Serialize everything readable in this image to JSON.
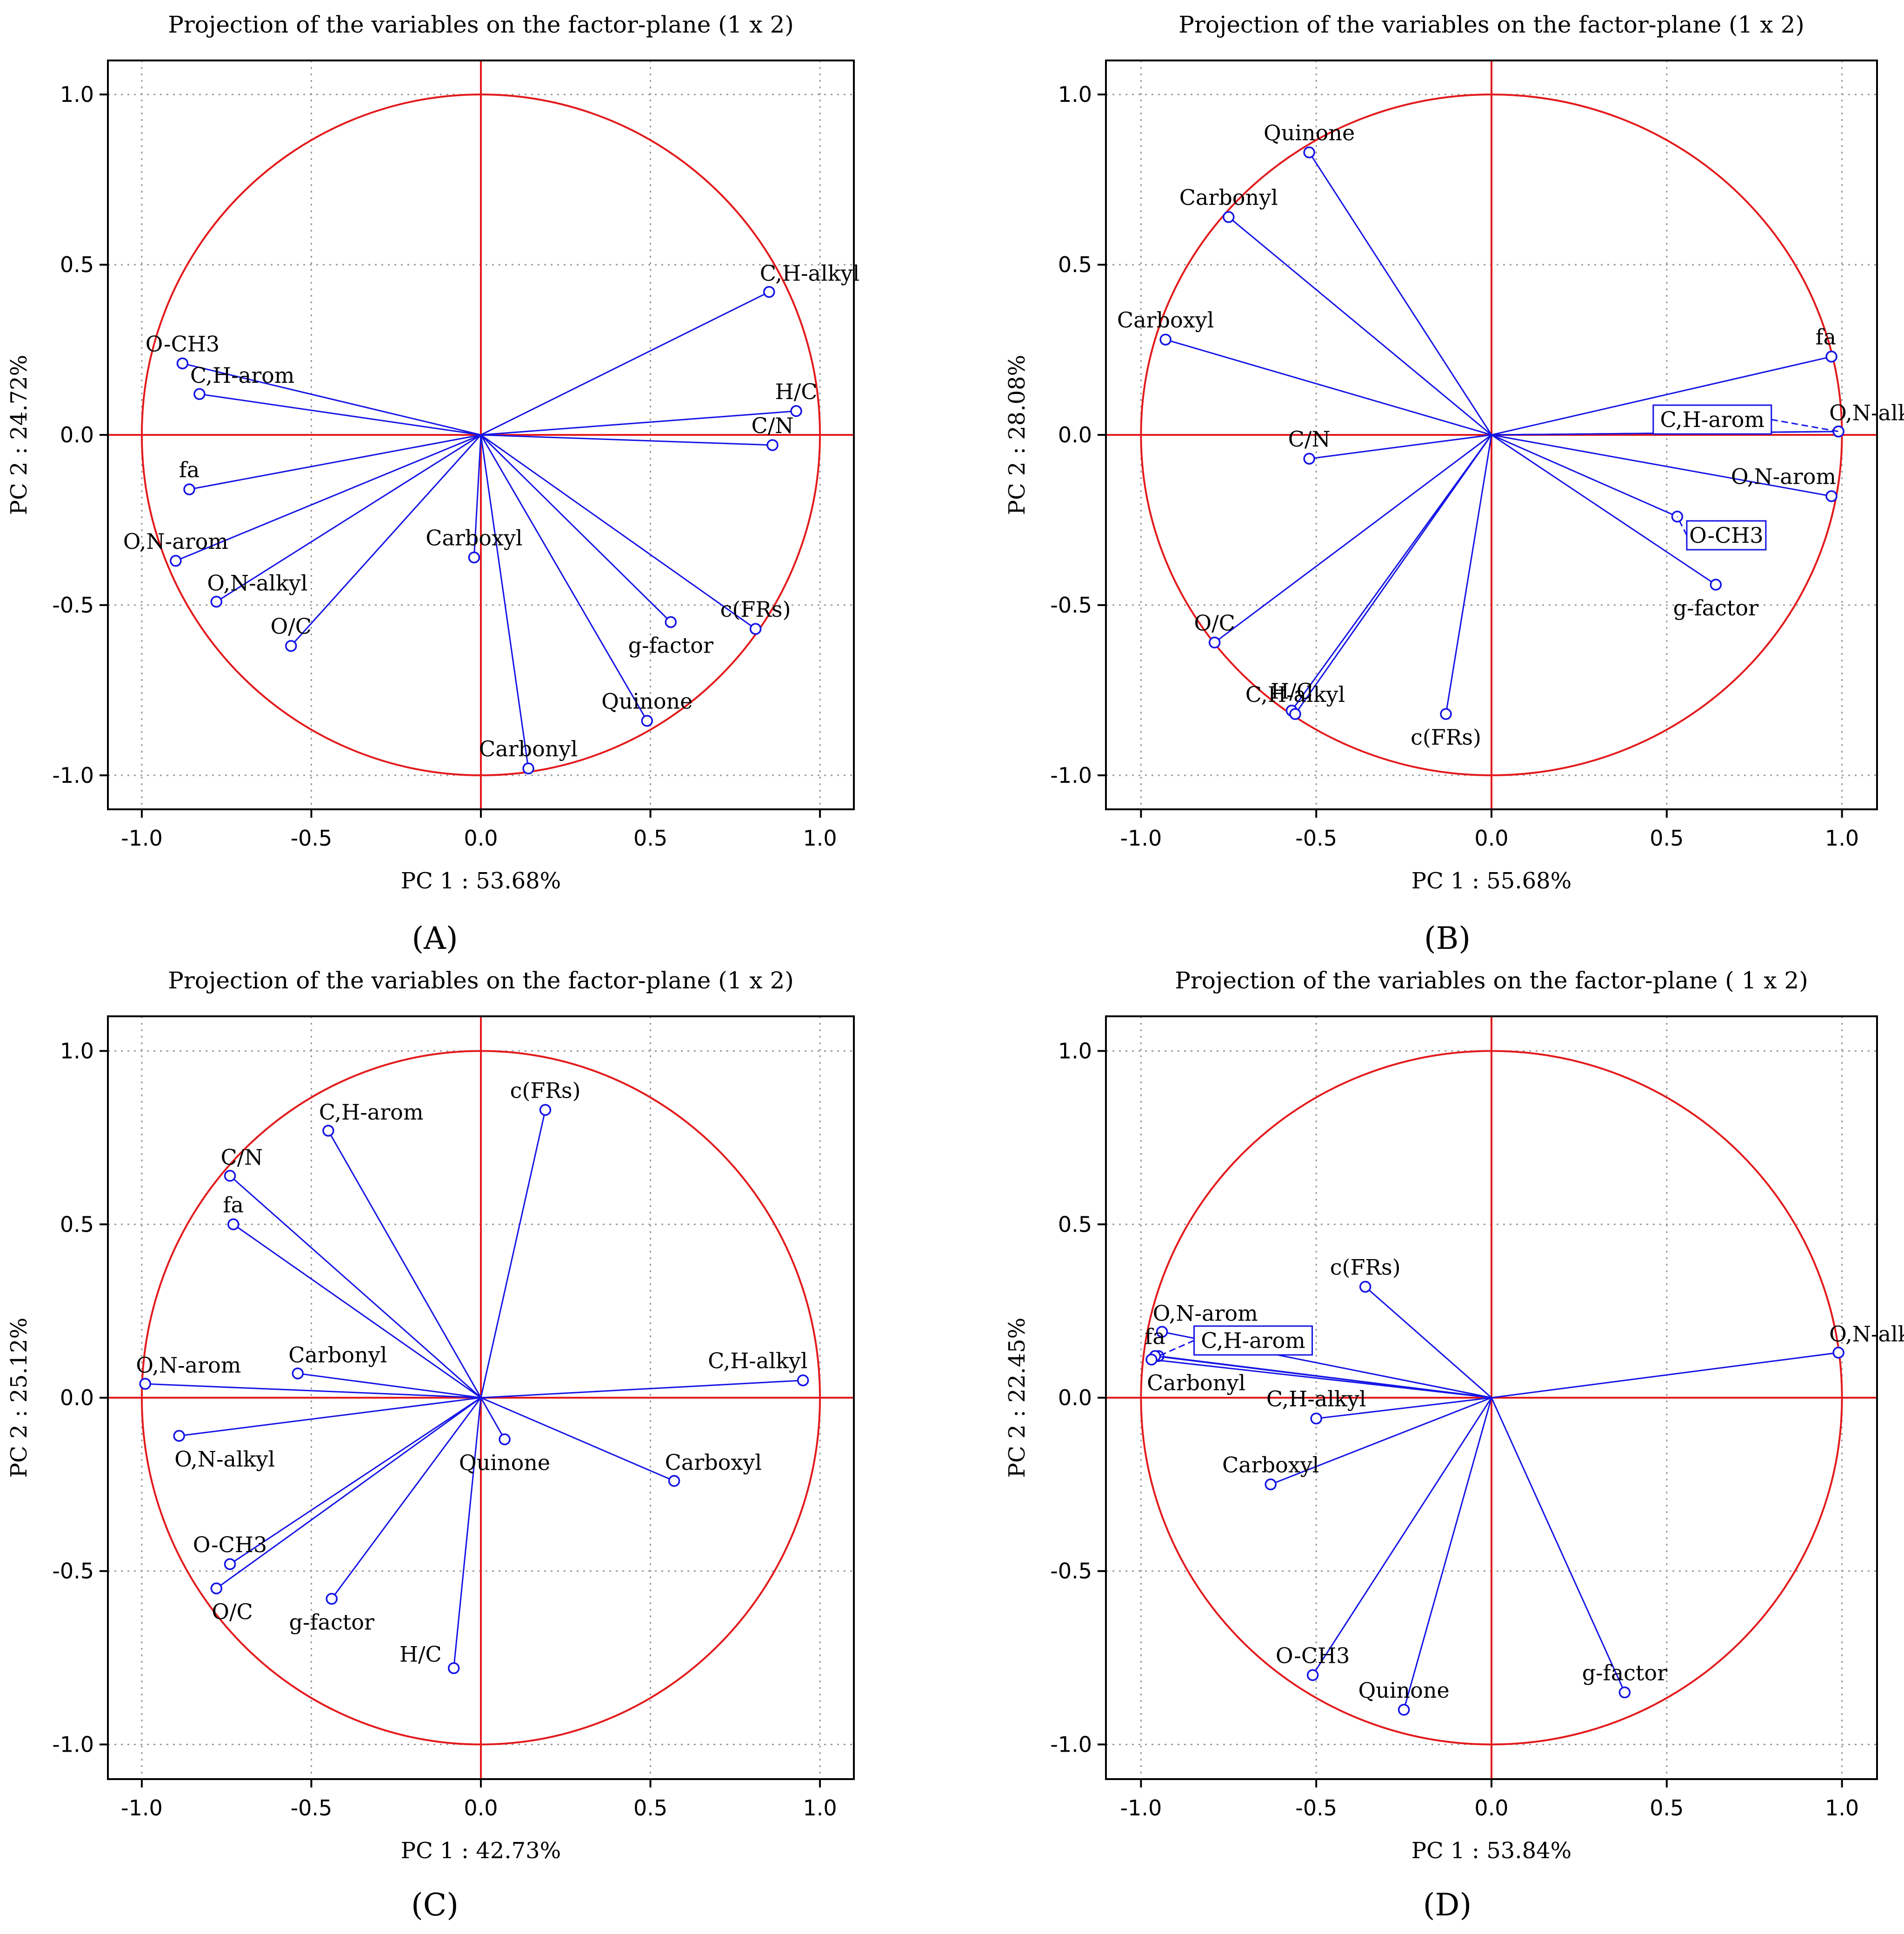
{
  "figure": {
    "panels": [
      {
        "id": "A",
        "caption": "(A)"
      },
      {
        "id": "B",
        "caption": "(B)"
      },
      {
        "id": "C",
        "caption": "(C)"
      },
      {
        "id": "D",
        "caption": "(D)"
      }
    ]
  },
  "colors": {
    "circle": "#e31a1c",
    "axes_cross": "#e31a1c",
    "vectors": "#1414e6",
    "frame": "#000000",
    "grid": "#9a9a9a",
    "text": "#000000"
  },
  "chart_data": [
    {
      "panel": "A",
      "type": "scatter",
      "subtype": "pca-correlation-circle",
      "title": "Projection of the variables on the factor-plane (1 x 2)",
      "xlabel": "PC 1 : 53.68%",
      "ylabel": "PC 2 : 24.72%",
      "xlim": [
        -1.1,
        1.1
      ],
      "ylim": [
        -1.1,
        1.1
      ],
      "xticks": [
        "-1.0",
        "-0.5",
        "0.0",
        "0.5",
        "1.0"
      ],
      "yticks": [
        "-1.0",
        "-0.5",
        "0.0",
        "0.5",
        "1.0"
      ],
      "grid": true,
      "variables": [
        {
          "name": "C,H-alkyl",
          "x": 0.85,
          "y": 0.42,
          "label_pos": "above-right"
        },
        {
          "name": "H/C",
          "x": 0.93,
          "y": 0.07,
          "label_pos": "above"
        },
        {
          "name": "C/N",
          "x": 0.86,
          "y": -0.03,
          "label_pos": "above"
        },
        {
          "name": "O-CH3",
          "x": -0.88,
          "y": 0.21,
          "label_pos": "above"
        },
        {
          "name": "C,H-arom",
          "x": -0.83,
          "y": 0.12,
          "label_pos": "above-right"
        },
        {
          "name": "fa",
          "x": -0.86,
          "y": -0.16,
          "label_pos": "above"
        },
        {
          "name": "O,N-arom",
          "x": -0.9,
          "y": -0.37,
          "label_pos": "above"
        },
        {
          "name": "O,N-alkyl",
          "x": -0.78,
          "y": -0.49,
          "label_pos": "above-right"
        },
        {
          "name": "O/C",
          "x": -0.56,
          "y": -0.62,
          "label_pos": "above"
        },
        {
          "name": "Carboxyl",
          "x": -0.02,
          "y": -0.36,
          "label_pos": "above"
        },
        {
          "name": "Carbonyl",
          "x": 0.14,
          "y": -0.98,
          "label_pos": "above"
        },
        {
          "name": "Quinone",
          "x": 0.49,
          "y": -0.84,
          "label_pos": "above"
        },
        {
          "name": "g-factor",
          "x": 0.56,
          "y": -0.55,
          "label_pos": "below"
        },
        {
          "name": "c(FRs)",
          "x": 0.81,
          "y": -0.57,
          "label_pos": "above"
        }
      ],
      "boxed_labels": []
    },
    {
      "panel": "B",
      "type": "scatter",
      "subtype": "pca-correlation-circle",
      "title": "Projection of the variables on the factor-plane (1 x 2)",
      "xlabel": "PC 1 : 55.68%",
      "ylabel": "PC 2 : 28.08%",
      "xlim": [
        -1.1,
        1.1
      ],
      "ylim": [
        -1.1,
        1.1
      ],
      "xticks": [
        "-1.0",
        "-0.5",
        "0.0",
        "0.5",
        "1.0"
      ],
      "yticks": [
        "-1.0",
        "-0.5",
        "0.0",
        "0.5",
        "1.0"
      ],
      "grid": true,
      "variables": [
        {
          "name": "Quinone",
          "x": -0.52,
          "y": 0.83,
          "label_pos": "above"
        },
        {
          "name": "Carbonyl",
          "x": -0.75,
          "y": 0.64,
          "label_pos": "above"
        },
        {
          "name": "Carboxyl",
          "x": -0.93,
          "y": 0.28,
          "label_pos": "above"
        },
        {
          "name": "fa",
          "x": 0.97,
          "y": 0.23,
          "label_pos": "above-left"
        },
        {
          "name": "O,N-alkyl",
          "x": 0.99,
          "y": 0.01,
          "label_pos": "above-right"
        },
        {
          "name": "C,H-arom",
          "x": 0.99,
          "y": 0.01,
          "label_pos": "none"
        },
        {
          "name": "C/N",
          "x": -0.52,
          "y": -0.07,
          "label_pos": "above"
        },
        {
          "name": "O,N-arom",
          "x": 0.97,
          "y": -0.18,
          "label_pos": "above-left"
        },
        {
          "name": "O-CH3",
          "x": 0.53,
          "y": -0.24,
          "label_pos": "none"
        },
        {
          "name": "g-factor",
          "x": 0.64,
          "y": -0.44,
          "label_pos": "below"
        },
        {
          "name": "O/C",
          "x": -0.79,
          "y": -0.61,
          "label_pos": "above"
        },
        {
          "name": "H/C",
          "x": -0.57,
          "y": -0.81,
          "label_pos": "above"
        },
        {
          "name": "C,H-alkyl",
          "x": -0.56,
          "y": -0.82,
          "label_pos": "above"
        },
        {
          "name": "c(FRs)",
          "x": -0.13,
          "y": -0.82,
          "label_pos": "below"
        }
      ],
      "boxed_labels": [
        {
          "text": "C,H-arom",
          "x": 0.63,
          "y": 0.045,
          "anchor_x": 0.99,
          "anchor_y": 0.01
        },
        {
          "text": "O-CH3",
          "x": 0.67,
          "y": -0.295,
          "anchor_x": 0.53,
          "anchor_y": -0.24
        }
      ]
    },
    {
      "panel": "C",
      "type": "scatter",
      "subtype": "pca-correlation-circle",
      "title": "Projection of the variables on the factor-plane (1 x 2)",
      "xlabel": "PC 1 : 42.73%",
      "ylabel": "PC 2 : 25.12%",
      "xlim": [
        -1.1,
        1.1
      ],
      "ylim": [
        -1.1,
        1.1
      ],
      "xticks": [
        "-1.0",
        "-0.5",
        "0.0",
        "0.5",
        "1.0"
      ],
      "yticks": [
        "-1.0",
        "-0.5",
        "0.0",
        "0.5",
        "1.0"
      ],
      "grid": true,
      "variables": [
        {
          "name": "C,H-arom",
          "x": -0.45,
          "y": 0.77,
          "label_pos": "above-right"
        },
        {
          "name": "c(FRs)",
          "x": 0.19,
          "y": 0.83,
          "label_pos": "above"
        },
        {
          "name": "C/N",
          "x": -0.74,
          "y": 0.64,
          "label_pos": "above-right"
        },
        {
          "name": "fa",
          "x": -0.73,
          "y": 0.5,
          "label_pos": "above"
        },
        {
          "name": "O,N-arom",
          "x": -0.99,
          "y": 0.04,
          "label_pos": "above-right"
        },
        {
          "name": "Carbonyl",
          "x": -0.54,
          "y": 0.07,
          "label_pos": "above-right"
        },
        {
          "name": "C,H-alkyl",
          "x": 0.95,
          "y": 0.05,
          "label_pos": "above-left"
        },
        {
          "name": "O,N-alkyl",
          "x": -0.89,
          "y": -0.11,
          "label_pos": "below-right"
        },
        {
          "name": "Quinone",
          "x": 0.07,
          "y": -0.12,
          "label_pos": "below"
        },
        {
          "name": "Carboxyl",
          "x": 0.57,
          "y": -0.24,
          "label_pos": "above-right"
        },
        {
          "name": "O-CH3",
          "x": -0.74,
          "y": -0.48,
          "label_pos": "above"
        },
        {
          "name": "O/C",
          "x": -0.78,
          "y": -0.55,
          "label_pos": "below-right"
        },
        {
          "name": "g-factor",
          "x": -0.44,
          "y": -0.58,
          "label_pos": "below"
        },
        {
          "name": "H/C",
          "x": -0.08,
          "y": -0.78,
          "label_pos": "left"
        }
      ],
      "boxed_labels": []
    },
    {
      "panel": "D",
      "type": "scatter",
      "subtype": "pca-correlation-circle",
      "title": "Projection of the variables on the factor-plane ( 1 x 2)",
      "xlabel": "PC 1 : 53.84%",
      "ylabel": "PC 2 : 22.45%",
      "xlim": [
        -1.1,
        1.1
      ],
      "ylim": [
        -1.1,
        1.1
      ],
      "xticks": [
        "-1.0",
        "-0.5",
        "0.0",
        "0.5",
        "1.0"
      ],
      "yticks": [
        "-1.0",
        "-0.5",
        "0.0",
        "0.5",
        "1.0"
      ],
      "grid": true,
      "variables": [
        {
          "name": "c(FRs)",
          "x": -0.36,
          "y": 0.32,
          "label_pos": "above"
        },
        {
          "name": "O,N-arom",
          "x": -0.94,
          "y": 0.19,
          "label_pos": "above-right"
        },
        {
          "name": "C,H-arom",
          "x": -0.95,
          "y": 0.12,
          "label_pos": "none"
        },
        {
          "name": "fa",
          "x": -0.96,
          "y": 0.12,
          "label_pos": "above"
        },
        {
          "name": "Carbonyl",
          "x": -0.97,
          "y": 0.11,
          "label_pos": "below-right"
        },
        {
          "name": "O,N-alkyl",
          "x": 0.99,
          "y": 0.13,
          "label_pos": "above-right"
        },
        {
          "name": "C,H-alkyl",
          "x": -0.5,
          "y": -0.06,
          "label_pos": "above"
        },
        {
          "name": "Carboxyl",
          "x": -0.63,
          "y": -0.25,
          "label_pos": "above"
        },
        {
          "name": "O-CH3",
          "x": -0.51,
          "y": -0.8,
          "label_pos": "above"
        },
        {
          "name": "Quinone",
          "x": -0.25,
          "y": -0.9,
          "label_pos": "above"
        },
        {
          "name": "g-factor",
          "x": 0.38,
          "y": -0.85,
          "label_pos": "above"
        }
      ],
      "boxed_labels": [
        {
          "text": "C,H-arom",
          "x": -0.68,
          "y": 0.165,
          "anchor_x": -0.95,
          "anchor_y": 0.12
        }
      ]
    }
  ]
}
